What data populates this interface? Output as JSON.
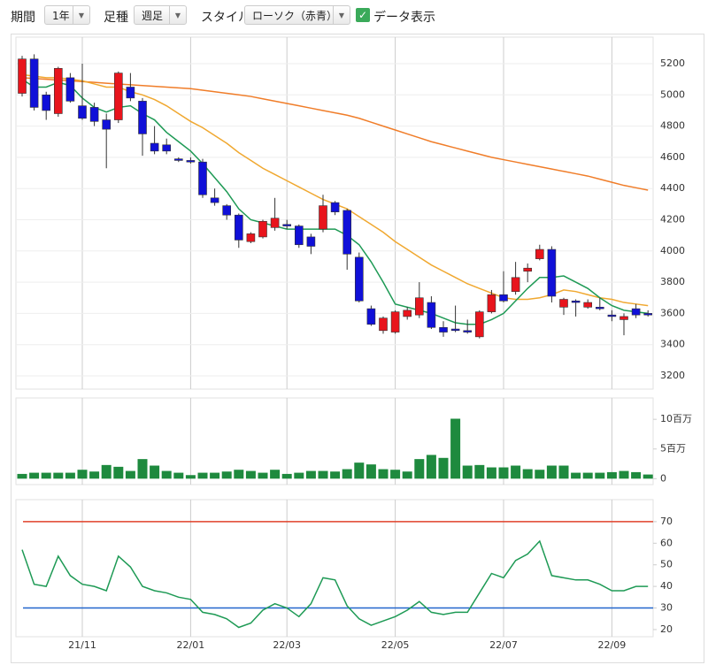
{
  "controls": {
    "period_label": "期間",
    "period": "1年",
    "foot_label": "足種",
    "foot": "週足",
    "style_label": "スタイル",
    "style": "ローソク（赤青）",
    "data_label": "データ表示"
  },
  "chart_data": [
    {
      "type": "candlestick",
      "up_color": "#e8141c",
      "down_color": "#1010d8",
      "categories": [
        null,
        null,
        null,
        null,
        null,
        "21/11",
        null,
        null,
        null,
        null,
        null,
        null,
        null,
        null,
        "22/01",
        null,
        null,
        null,
        null,
        null,
        null,
        null,
        "22/03",
        null,
        null,
        null,
        null,
        null,
        null,
        null,
        null,
        "22/05",
        null,
        null,
        null,
        null,
        null,
        null,
        null,
        null,
        "22/07",
        null,
        null,
        null,
        null,
        null,
        null,
        null,
        null,
        "22/09",
        null,
        null,
        null
      ],
      "open": [
        5010,
        5230,
        5000,
        4880,
        5110,
        4930,
        4920,
        4840,
        4840,
        5050,
        4960,
        4690,
        4680,
        4590,
        4580,
        4570,
        4340,
        4290,
        4230,
        4060,
        4090,
        4150,
        4170,
        4160,
        4090,
        4140,
        4310,
        4260,
        3960,
        3630,
        3490,
        3480,
        3580,
        3590,
        3670,
        3510,
        3500,
        3490,
        3450,
        3610,
        3720,
        3740,
        3870,
        3950,
        4010,
        3640,
        3680,
        3640,
        3640,
        3590,
        3560,
        3630,
        3600
      ],
      "high": [
        5250,
        5260,
        5020,
        5180,
        5140,
        5200,
        4950,
        4880,
        5150,
        5140,
        4980,
        4800,
        4720,
        4600,
        4600,
        4590,
        4400,
        4300,
        4240,
        4120,
        4200,
        4340,
        4200,
        4170,
        4110,
        4360,
        4320,
        4270,
        3990,
        3650,
        3580,
        3620,
        3640,
        3800,
        3710,
        3550,
        3650,
        3560,
        3620,
        3750,
        3870,
        3930,
        3920,
        4040,
        4030,
        3700,
        3690,
        3690,
        3700,
        3620,
        3600,
        3660,
        3620
      ],
      "low": [
        4990,
        4900,
        4840,
        4860,
        4950,
        4840,
        4800,
        4530,
        4820,
        4960,
        4610,
        4620,
        4620,
        4570,
        4560,
        4340,
        4290,
        4200,
        4020,
        4050,
        4080,
        4130,
        4140,
        4020,
        3980,
        4120,
        4230,
        3880,
        3670,
        3520,
        3470,
        3470,
        3560,
        3570,
        3500,
        3450,
        3480,
        3470,
        3440,
        3600,
        3670,
        3720,
        3800,
        3940,
        3670,
        3590,
        3580,
        3630,
        3620,
        3550,
        3460,
        3570,
        3580
      ],
      "close": [
        5230,
        4920,
        4900,
        5170,
        4960,
        4850,
        4830,
        4780,
        5140,
        4980,
        4750,
        4640,
        4640,
        4580,
        4570,
        4360,
        4310,
        4230,
        4070,
        4110,
        4190,
        4210,
        4160,
        4040,
        4030,
        4290,
        4250,
        3980,
        3680,
        3530,
        3570,
        3610,
        3620,
        3700,
        3510,
        3480,
        3490,
        3480,
        3610,
        3720,
        3680,
        3830,
        3890,
        4010,
        3710,
        3690,
        3670,
        3670,
        3630,
        3580,
        3580,
        3590,
        3590
      ],
      "lines": [
        {
          "color": "#f07d29",
          "values": [
            5110,
            5105,
            5100,
            5095,
            5090,
            5085,
            5080,
            5075,
            5070,
            5065,
            5060,
            5055,
            5050,
            5045,
            5040,
            5030,
            5020,
            5010,
            5000,
            4990,
            4975,
            4960,
            4945,
            4930,
            4915,
            4900,
            4885,
            4870,
            4850,
            4825,
            4800,
            4775,
            4750,
            4725,
            4700,
            4680,
            4660,
            4640,
            4620,
            4600,
            4585,
            4570,
            4555,
            4540,
            4525,
            4510,
            4495,
            4480,
            4460,
            4440,
            4420,
            4405,
            4390
          ]
        },
        {
          "color": "#f0a830",
          "values": [
            5130,
            5120,
            5110,
            5110,
            5100,
            5090,
            5070,
            5050,
            5050,
            5020,
            5000,
            4970,
            4930,
            4880,
            4830,
            4790,
            4740,
            4690,
            4630,
            4580,
            4530,
            4490,
            4450,
            4410,
            4370,
            4330,
            4300,
            4270,
            4220,
            4170,
            4120,
            4060,
            4010,
            3960,
            3910,
            3870,
            3830,
            3790,
            3760,
            3730,
            3700,
            3690,
            3690,
            3700,
            3720,
            3750,
            3740,
            3720,
            3700,
            3690,
            3670,
            3660,
            3650
          ]
        },
        {
          "color": "#1e9a55",
          "values": [
            5100,
            5050,
            5050,
            5080,
            5060,
            4980,
            4920,
            4890,
            4920,
            4930,
            4880,
            4840,
            4760,
            4700,
            4640,
            4560,
            4470,
            4380,
            4270,
            4200,
            4180,
            4160,
            4140,
            4140,
            4140,
            4140,
            4140,
            4100,
            4040,
            3930,
            3800,
            3660,
            3640,
            3620,
            3600,
            3570,
            3540,
            3530,
            3530,
            3560,
            3600,
            3680,
            3760,
            3830,
            3830,
            3840,
            3800,
            3760,
            3700,
            3650,
            3620,
            3610,
            3600
          ]
        }
      ],
      "ylim": [
        3115,
        5370
      ],
      "yticks": [
        3200,
        3400,
        3600,
        3800,
        4000,
        4200,
        4400,
        4600,
        4800,
        5000,
        5200
      ],
      "grid": true
    },
    {
      "type": "bar",
      "color": "#1e8a3e",
      "values": [
        800000,
        1000000,
        1000000,
        1000000,
        1000000,
        1500000,
        1200000,
        2300000,
        2000000,
        1300000,
        3300000,
        2200000,
        1300000,
        1000000,
        600000,
        1000000,
        1000000,
        1200000,
        1500000,
        1300000,
        1000000,
        1500000,
        800000,
        1000000,
        1300000,
        1300000,
        1200000,
        1600000,
        2700000,
        2400000,
        1600000,
        1500000,
        1200000,
        3300000,
        4000000,
        3500000,
        10100000,
        2200000,
        2300000,
        1900000,
        1900000,
        2200000,
        1600000,
        1500000,
        2200000,
        2200000,
        1000000,
        1000000,
        1000000,
        1100000,
        1300000,
        1100000,
        700000
      ],
      "ylim": [
        -1000000,
        13600000
      ],
      "yticks": [
        0,
        {
          "value": 5000000,
          "label": "5百万"
        },
        {
          "value": 10000000,
          "label": "10百万"
        }
      ]
    },
    {
      "type": "line",
      "color": "#1e9a55",
      "values": [
        57,
        41,
        40,
        54,
        45,
        41,
        40,
        38,
        54,
        49,
        40,
        38,
        37,
        35,
        34,
        28,
        27,
        25,
        21,
        23,
        29,
        32,
        30,
        26,
        32,
        44,
        43,
        31,
        25,
        22,
        24,
        26,
        29,
        33,
        28,
        27,
        28,
        28,
        37,
        46,
        44,
        52,
        55,
        61,
        45,
        44,
        43,
        43,
        41,
        38,
        38,
        40,
        40
      ],
      "ref_lines": [
        {
          "value": 70,
          "color": "#e0402a"
        },
        {
          "value": 30,
          "color": "#2266cc"
        }
      ],
      "ylim": [
        16.7,
        80.2
      ],
      "yticks": [
        20,
        30,
        40,
        50,
        60,
        70
      ]
    }
  ]
}
